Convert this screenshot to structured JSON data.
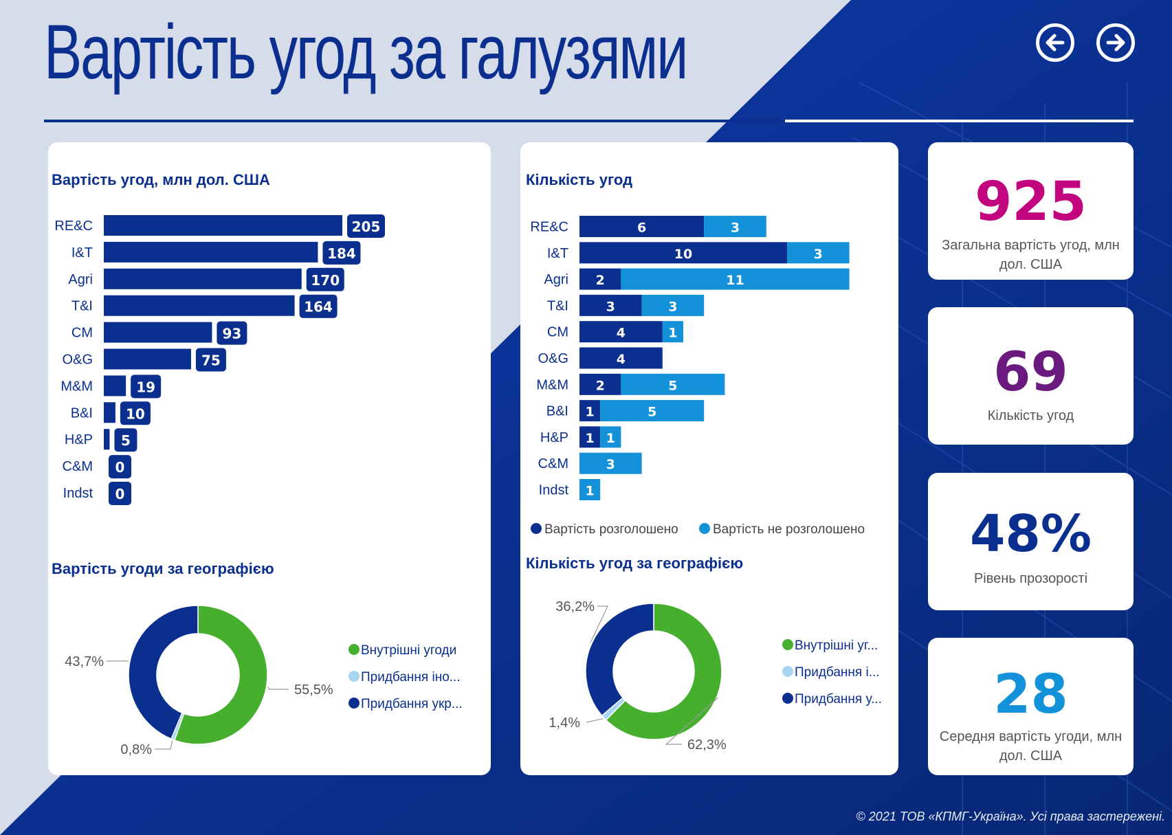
{
  "page": {
    "title": "Вартість угод за галузями",
    "footer": "© 2021 ТОВ «КПМГ-Україна». Усі права застережені."
  },
  "nav": {
    "back_icon": "arrow-left-icon",
    "forward_icon": "arrow-right-icon"
  },
  "colors": {
    "dark_blue": "#0a2f8f",
    "light_blue": "#1391d9",
    "green": "#46b02e",
    "pale_blue": "#a6d6f2",
    "magenta": "#c2057f",
    "purple": "#6a1a7e",
    "kpi_blue": "#1391d9"
  },
  "kpis": [
    {
      "value": "925",
      "label": "Загальна вартість угод, млн дол. США"
    },
    {
      "value": "69",
      "label": "Кількість угод"
    },
    {
      "value": "48%",
      "label": "Рівень прозорості"
    },
    {
      "value": "28",
      "label": "Середня вартість угоди, млн дол. США"
    }
  ],
  "chart_data": [
    {
      "type": "bar",
      "orientation": "horizontal",
      "title": "Вартість угод, млн дол. США",
      "categories": [
        "RE&C",
        "I&T",
        "Agri",
        "T&I",
        "CM",
        "O&G",
        "M&M",
        "B&I",
        "H&P",
        "C&M",
        "Indst"
      ],
      "values": [
        205,
        184,
        170,
        164,
        93,
        75,
        19,
        10,
        5,
        0,
        0
      ],
      "xlim": [
        0,
        205
      ]
    },
    {
      "type": "bar",
      "orientation": "horizontal",
      "stacked": true,
      "title": "Кількість угод",
      "categories": [
        "RE&C",
        "I&T",
        "Agri",
        "T&I",
        "CM",
        "O&G",
        "M&M",
        "B&I",
        "H&P",
        "C&M",
        "Indst"
      ],
      "series": [
        {
          "name": "Вартість розголошено",
          "values": [
            6,
            10,
            2,
            3,
            4,
            4,
            2,
            1,
            1,
            0,
            0
          ]
        },
        {
          "name": "Вартість не розголошено",
          "values": [
            3,
            3,
            11,
            3,
            1,
            0,
            5,
            5,
            1,
            3,
            1
          ]
        }
      ],
      "legend": "bottom"
    },
    {
      "type": "pie",
      "donut": true,
      "title": "Вартість угоди за географією",
      "labels": [
        "Внутрішні угоди",
        "Придбання іно...",
        "Придбання укр..."
      ],
      "values": [
        55.5,
        0.8,
        43.7
      ],
      "value_labels": [
        "55,5%",
        "0,8%",
        "43,7%"
      ],
      "legend": "right"
    },
    {
      "type": "pie",
      "donut": true,
      "title": "Кількість угод за географією",
      "labels": [
        "Внутрішні уг...",
        "Придбання і...",
        "Придбання у..."
      ],
      "values": [
        62.3,
        1.4,
        36.2
      ],
      "value_labels": [
        "62,3%",
        "1,4%",
        "36,2%"
      ],
      "legend": "right"
    }
  ]
}
